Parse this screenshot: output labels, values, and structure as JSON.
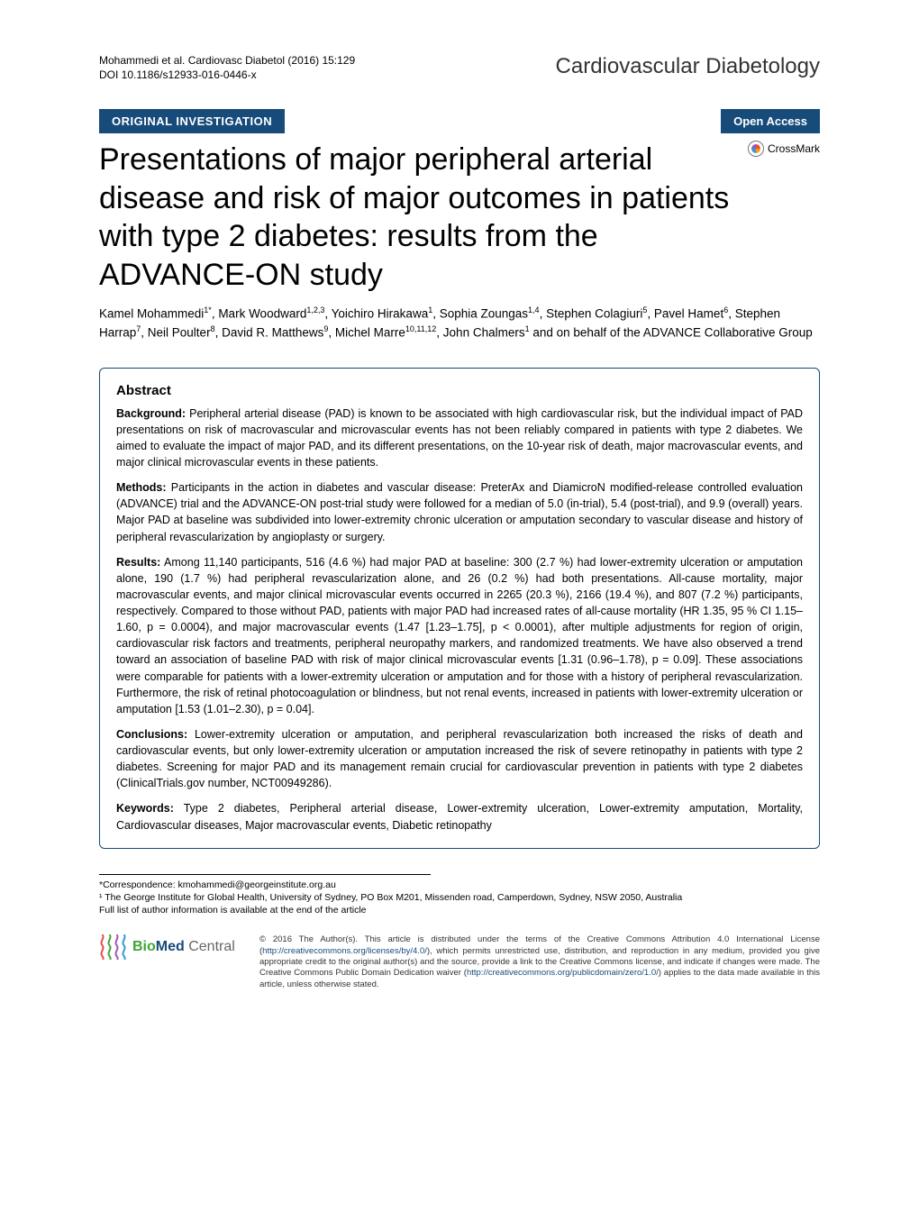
{
  "header": {
    "citation_line1": "Mohammedi et al. Cardiovasc Diabetol  (2016) 15:129",
    "citation_line2": "DOI 10.1186/s12933-016-0446-x",
    "journal_name": "Cardiovascular Diabetology"
  },
  "category_bar": {
    "left": "ORIGINAL INVESTIGATION",
    "right": "Open Access"
  },
  "crossmark_label": "CrossMark",
  "article": {
    "title": "Presentations of major peripheral arterial disease and risk of major outcomes in patients with type 2 diabetes: results from the ADVANCE-ON study",
    "authors_html": "Kamel Mohammedi<sup>1*</sup>, Mark Woodward<sup>1,2,3</sup>, Yoichiro Hirakawa<sup>1</sup>, Sophia Zoungas<sup>1,4</sup>, Stephen Colagiuri<sup>5</sup>, Pavel Hamet<sup>6</sup>, Stephen Harrap<sup>7</sup>, Neil Poulter<sup>8</sup>, David R. Matthews<sup>9</sup>, Michel Marre<sup>10,11,12</sup>, John Chalmers<sup>1</sup> and on behalf of the ADVANCE Collaborative Group"
  },
  "abstract": {
    "heading": "Abstract",
    "background": {
      "label": "Background:",
      "text": "Peripheral arterial disease (PAD) is known to be associated with high cardiovascular risk, but the individual impact of PAD presentations on risk of macrovascular and microvascular events has not been reliably compared in patients with type 2 diabetes. We aimed to evaluate the impact of major PAD, and its different presentations, on the 10-year risk of death, major macrovascular events, and major clinical microvascular events in these patients."
    },
    "methods": {
      "label": "Methods:",
      "text": "Participants in the action in diabetes and vascular disease: PreterAx and DiamicroN modified-release controlled evaluation (ADVANCE) trial and the ADVANCE-ON post-trial study were followed for a median of 5.0 (in-trial), 5.4 (post-trial), and 9.9 (overall) years. Major PAD at baseline was subdivided into lower-extremity chronic ulceration or amputation secondary to vascular disease and history of peripheral revascularization by angioplasty or surgery."
    },
    "results": {
      "label": "Results:",
      "text": "Among 11,140 participants, 516 (4.6 %) had major PAD at baseline: 300 (2.7 %) had lower-extremity ulceration or amputation alone, 190 (1.7 %) had peripheral revascularization alone, and 26 (0.2 %) had both presentations. All-cause mortality, major macrovascular events, and major clinical microvascular events occurred in 2265 (20.3 %), 2166 (19.4 %), and 807 (7.2 %) participants, respectively. Compared to those without PAD, patients with major PAD had increased rates of all-cause mortality (HR 1.35, 95 % CI 1.15–1.60, p = 0.0004), and major macrovascular events (1.47 [1.23–1.75], p < 0.0001), after multiple adjustments for region of origin, cardiovascular risk factors and treatments, peripheral neuropathy markers, and randomized treatments. We have also observed a trend toward an association of baseline PAD with risk of major clinical microvascular events [1.31 (0.96–1.78), p = 0.09]. These associations were comparable for patients with a lower-extremity ulceration or amputation and for those with a history of peripheral revascularization. Furthermore, the risk of retinal photocoagulation or blindness, but not renal events, increased in patients with lower-extremity ulceration or amputation [1.53 (1.01–2.30), p = 0.04]."
    },
    "conclusions": {
      "label": "Conclusions:",
      "text": "Lower-extremity ulceration or amputation, and peripheral revascularization both increased the risks of death and cardiovascular events, but only lower-extremity ulceration or amputation increased the risk of severe retinopathy in patients with type 2 diabetes. Screening for major PAD and its management remain crucial for cardiovascular prevention in patients with type 2 diabetes (ClinicalTrials.gov number, NCT00949286)."
    },
    "keywords": {
      "label": "Keywords:",
      "text": "Type 2 diabetes, Peripheral arterial disease, Lower-extremity ulceration, Lower-extremity amputation, Mortality, Cardiovascular diseases, Major macrovascular events, Diabetic retinopathy"
    }
  },
  "footnotes": {
    "correspondence": "*Correspondence:  kmohammedi@georgeinstitute.org.au",
    "affiliation": "¹ The George Institute for Global Health, University of Sydney, PO Box M201, Missenden road, Camperdown, Sydney, NSW 2050, Australia",
    "full_list": "Full list of author information is available at the end of the article"
  },
  "footer": {
    "bmc_parts": {
      "bio": "Bio",
      "med": "Med",
      "central": " Central"
    },
    "spring_colors": [
      "#e84c3d",
      "#3fa535",
      "#9b59b6",
      "#3498db"
    ],
    "license_prefix": "© 2016 The Author(s). This article is distributed under the terms of the Creative Commons Attribution 4.0 International License (",
    "license_url1": "http://creativecommons.org/licenses/by/4.0/",
    "license_middle": "), which permits unrestricted use, distribution, and reproduction in any medium, provided you give appropriate credit to the original author(s) and the source, provide a link to the Creative Commons license, and indicate if changes were made. The Creative Commons Public Domain Dedication waiver (",
    "license_url2": "http://creativecommons.org/publicdomain/zero/1.0/",
    "license_suffix": ") applies to the data made available in this article, unless otherwise stated."
  },
  "colors": {
    "brand_blue": "#164b7a",
    "link_blue": "#164b7a"
  }
}
